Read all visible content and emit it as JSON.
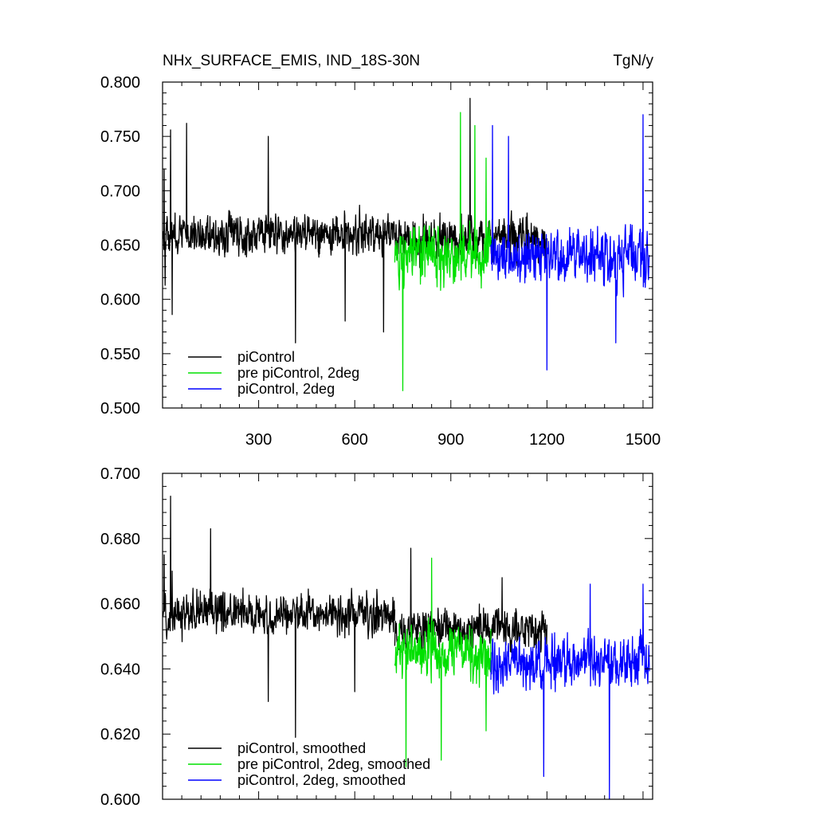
{
  "chart_data": [
    {
      "type": "line",
      "title": "NHx_SURFACE_EMIS, IND_18S-30N",
      "units": "TgN/y",
      "xlim": [
        0,
        1530
      ],
      "ylim": [
        0.5,
        0.8
      ],
      "x_ticks": [
        300,
        600,
        900,
        1200,
        1500
      ],
      "x_ticklabels": [
        "300",
        "600",
        "900",
        "1200",
        "1500"
      ],
      "y_ticks": [
        0.5,
        0.55,
        0.6,
        0.65,
        0.7,
        0.75,
        0.8
      ],
      "y_ticklabels": [
        "0.500",
        "0.550",
        "0.600",
        "0.650",
        "0.700",
        "0.750",
        "0.800"
      ],
      "legend_position": "bottom-left",
      "series": [
        {
          "name": "piControl",
          "color": "#000000",
          "x_start": 1,
          "x_end": 725,
          "mean": 0.66,
          "amplitude": 0.035,
          "key_points": [
            [
              5,
              0.72
            ],
            [
              8,
              0.613
            ],
            [
              25,
              0.756
            ],
            [
              30,
              0.586
            ],
            [
              75,
              0.762
            ],
            [
              330,
              0.75
            ],
            [
              415,
              0.56
            ],
            [
              570,
              0.58
            ],
            [
              690,
              0.57
            ]
          ]
        },
        {
          "name": "pre piControl, 2deg",
          "color": "#00e000",
          "x_start": 725,
          "x_end": 1025,
          "mean": 0.64,
          "amplitude": 0.05,
          "key_points": [
            [
              750,
              0.516
            ],
            [
              930,
              0.772
            ],
            [
              975,
              0.76
            ],
            [
              1010,
              0.73
            ]
          ]
        },
        {
          "name": "piControl, 2deg",
          "color": "#0000ff",
          "x_start": 1025,
          "x_end": 1520,
          "mean": 0.64,
          "amplitude": 0.048,
          "key_points": [
            [
              1030,
              0.76
            ],
            [
              1080,
              0.75
            ],
            [
              1200,
              0.535
            ],
            [
              1415,
              0.56
            ],
            [
              1500,
              0.77
            ]
          ]
        }
      ],
      "hidden_overlap_series": {
        "name": "piControl",
        "color": "#000000",
        "x_start": 725,
        "x_end": 1200,
        "mean": 0.655,
        "amplitude": 0.04,
        "key_points": [
          [
            960,
            0.785
          ]
        ]
      }
    },
    {
      "type": "line",
      "xlim": [
        0,
        1530
      ],
      "ylim": [
        0.6,
        0.7
      ],
      "x_ticks": [
        300,
        600,
        900,
        1200,
        1500
      ],
      "y_ticks": [
        0.6,
        0.62,
        0.64,
        0.66,
        0.68,
        0.7
      ],
      "y_ticklabels": [
        "0.600",
        "0.620",
        "0.640",
        "0.660",
        "0.680",
        "0.700"
      ],
      "legend_position": "bottom-left",
      "series": [
        {
          "name": "piControl, smoothed",
          "color": "#000000",
          "x_start": 1,
          "x_end": 725,
          "mean": 0.657,
          "amplitude": 0.012,
          "key_points": [
            [
              5,
              0.675
            ],
            [
              25,
              0.693
            ],
            [
              30,
              0.67
            ],
            [
              150,
              0.683
            ],
            [
              330,
              0.63
            ],
            [
              415,
              0.619
            ],
            [
              600,
              0.633
            ]
          ]
        },
        {
          "name": "pre piControl, 2deg, smoothed",
          "color": "#00e000",
          "x_start": 725,
          "x_end": 1025,
          "mean": 0.645,
          "amplitude": 0.016,
          "key_points": [
            [
              760,
              0.61
            ],
            [
              840,
              0.674
            ],
            [
              870,
              0.612
            ],
            [
              1010,
              0.621
            ]
          ]
        },
        {
          "name": "piControl, 2deg, smoothed",
          "color": "#0000ff",
          "x_start": 1025,
          "x_end": 1520,
          "mean": 0.642,
          "amplitude": 0.015,
          "key_points": [
            [
              1190,
              0.607
            ],
            [
              1335,
              0.666
            ],
            [
              1395,
              0.6
            ],
            [
              1500,
              0.666
            ]
          ]
        }
      ],
      "hidden_overlap_series": {
        "name": "piControl, smoothed",
        "color": "#000000",
        "x_start": 725,
        "x_end": 1200,
        "mean": 0.652,
        "amplitude": 0.012,
        "key_points": [
          [
            775,
            0.677
          ],
          [
            1060,
            0.668
          ]
        ]
      }
    }
  ]
}
